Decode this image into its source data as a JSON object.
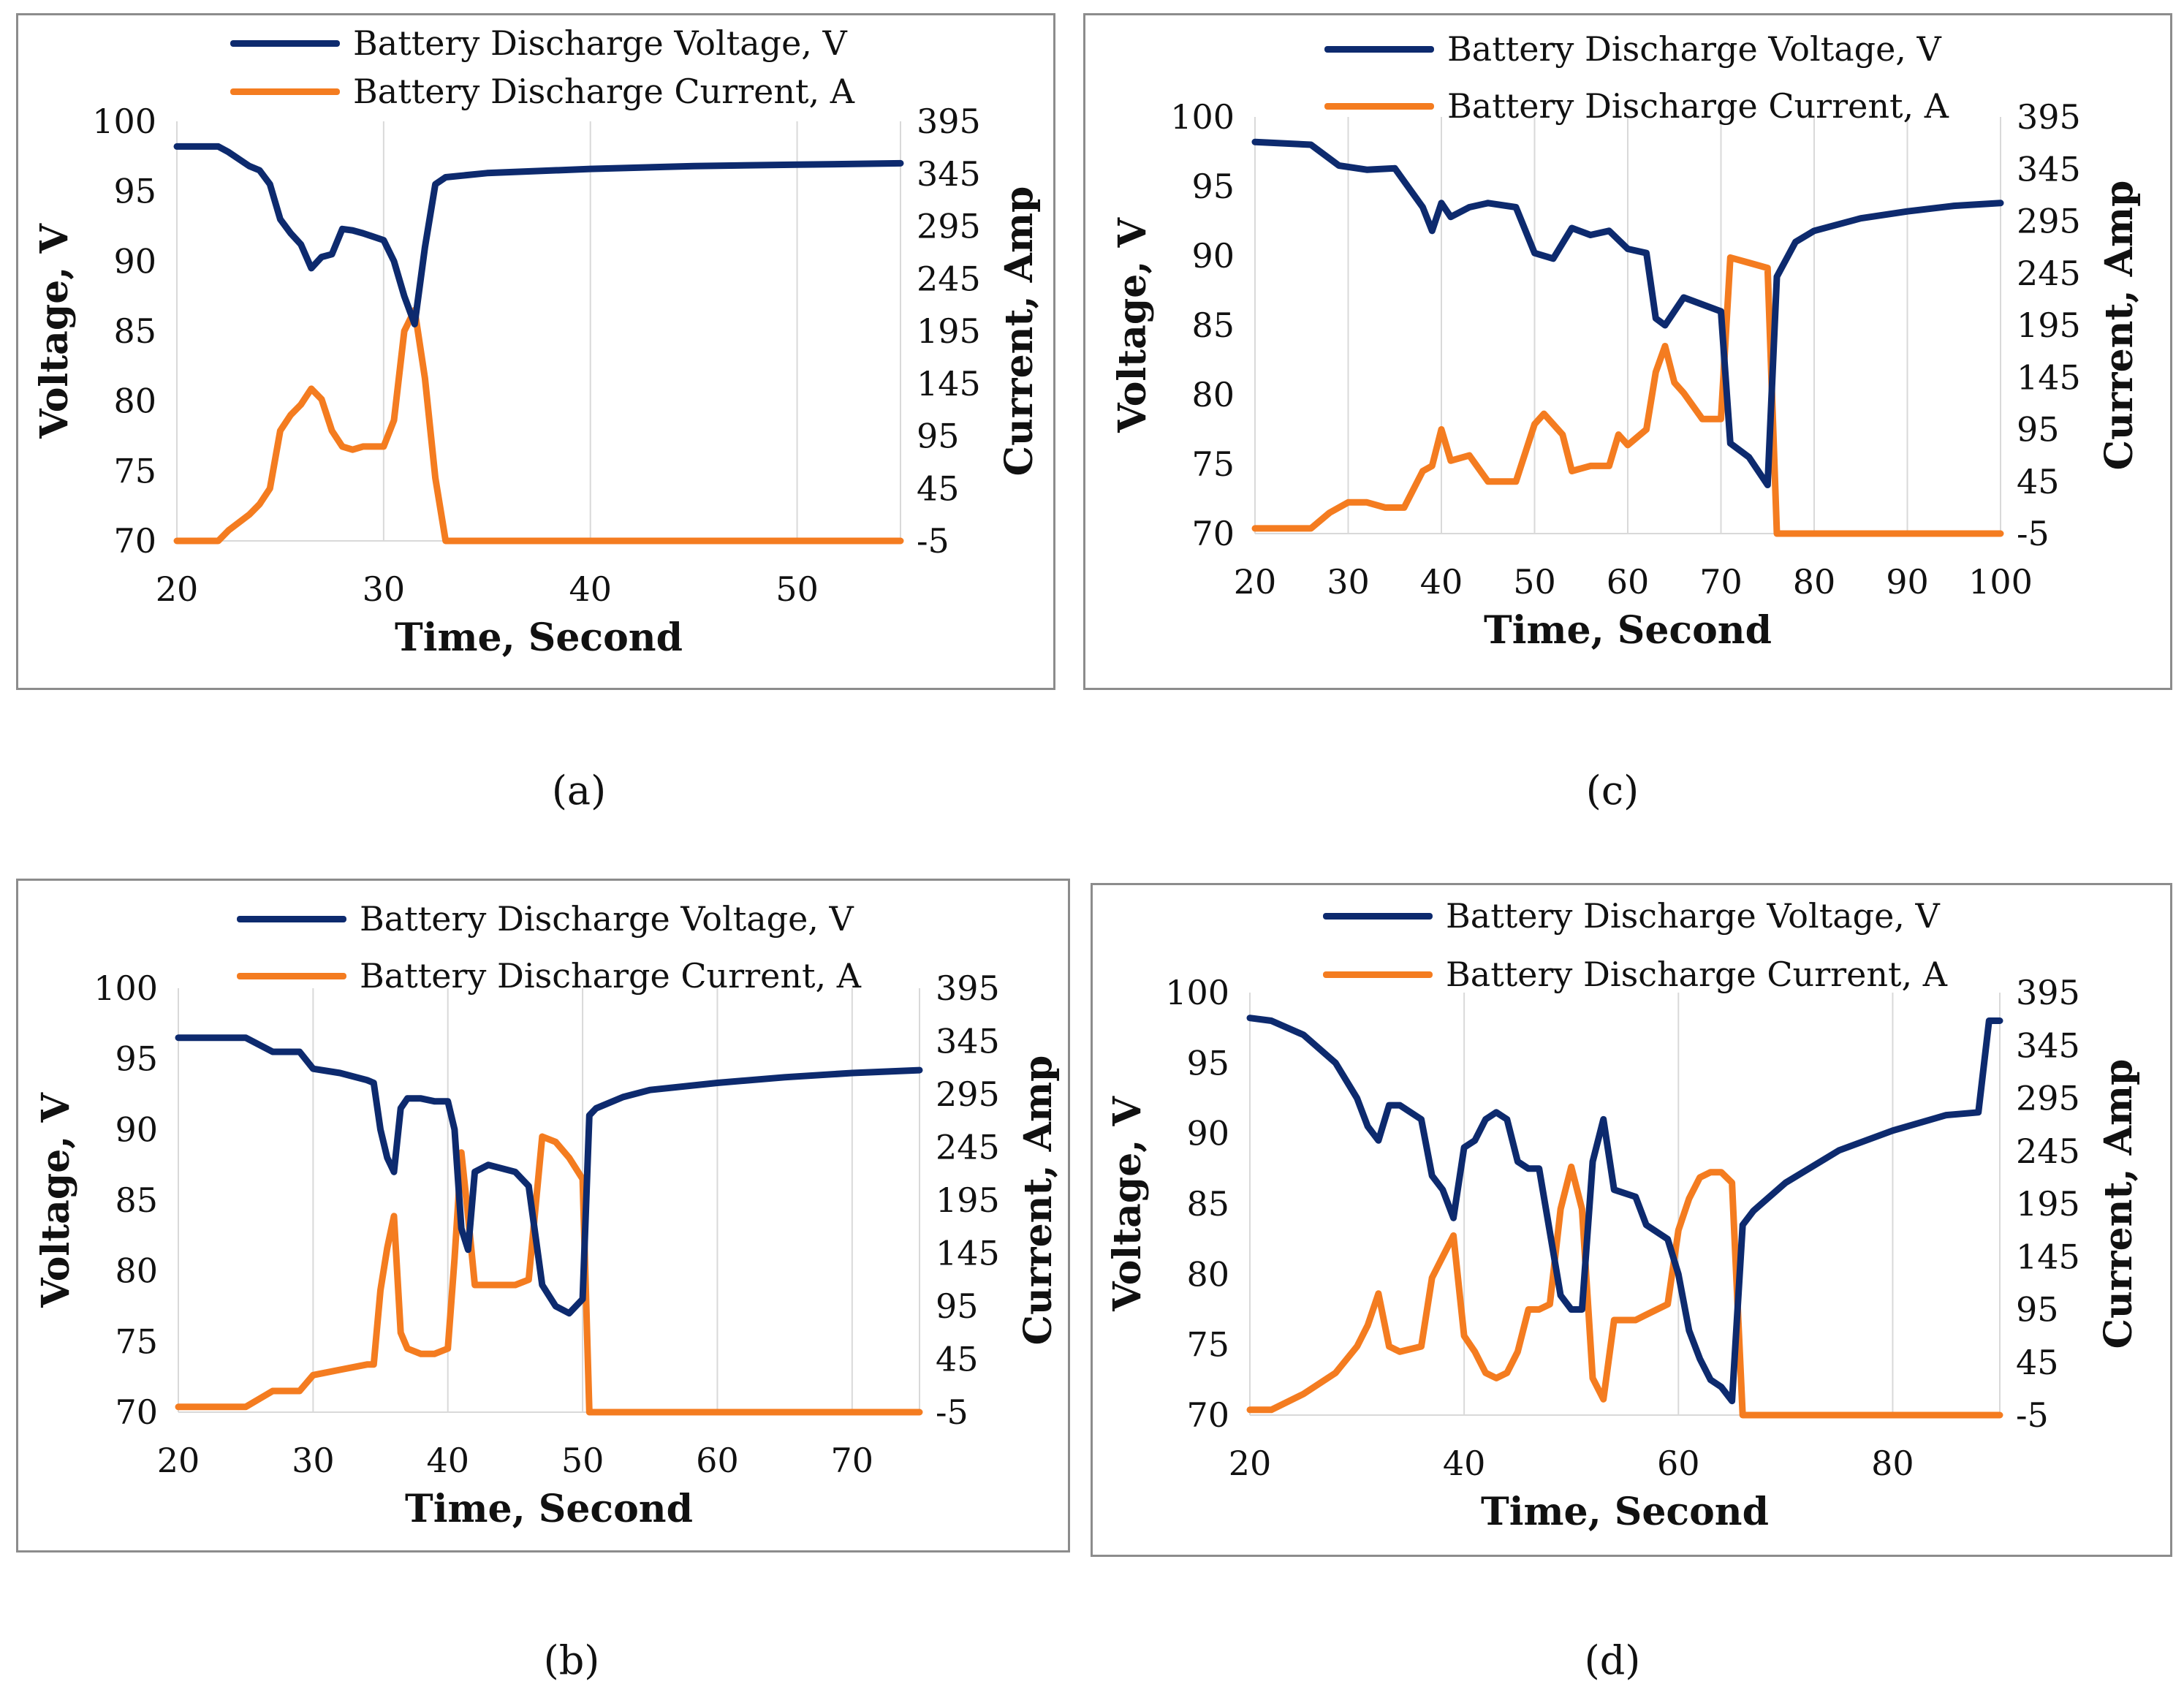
{
  "colors": {
    "voltage": "#0d2a6e",
    "current": "#f47c20",
    "grid": "#d9d9d9",
    "frame": "#8c8c8c"
  },
  "panels": [
    {
      "id": "a",
      "caption": "(a)",
      "chart_data": {
        "type": "line",
        "title": "",
        "xlabel": "Time, Second",
        "ylabel_left": "Voltage, V",
        "ylabel_right": "Current, Amp",
        "xlim": [
          20,
          55
        ],
        "x_ticks": [
          "20",
          "30",
          "40",
          "50"
        ],
        "ylim_left": [
          70,
          100
        ],
        "y_left_ticks": [
          "70",
          "75",
          "80",
          "85",
          "90",
          "95",
          "100"
        ],
        "ylim_right": [
          -5,
          395
        ],
        "y_right_ticks": [
          "-5",
          "45",
          "95",
          "145",
          "195",
          "245",
          "295",
          "345",
          "395"
        ],
        "grid": "vertical",
        "legend": "top-center",
        "series": [
          {
            "name": "Battery Discharge Voltage, V",
            "axis": "left",
            "x": [
              20,
              22,
              22.5,
              23.5,
              24,
              24.5,
              25,
              25.5,
              26,
              26.5,
              27,
              27.5,
              28,
              28.5,
              29,
              30,
              30.5,
              31,
              31.5,
              32,
              32.5,
              33,
              35,
              40,
              45,
              50,
              55
            ],
            "y": [
              98.2,
              98.2,
              97.8,
              96.8,
              96.5,
              95.5,
              93,
              92,
              91.2,
              89.5,
              90.3,
              90.5,
              92.3,
              92.2,
              92,
              91.5,
              90,
              87.5,
              85.5,
              91,
              95.5,
              96,
              96.3,
              96.6,
              96.8,
              96.9,
              97
            ]
          },
          {
            "name": "Battery Discharge Current, A",
            "axis": "right",
            "x": [
              20,
              22,
              22.5,
              23.5,
              24,
              24.5,
              25,
              25.5,
              26,
              26.5,
              27,
              27.5,
              28,
              28.5,
              29,
              30,
              30.5,
              31,
              31.5,
              32,
              32.5,
              33,
              35,
              40,
              45,
              50,
              55
            ],
            "y": [
              -5,
              -5,
              5,
              20,
              30,
              45,
              100,
              115,
              125,
              140,
              130,
              100,
              85,
              82,
              85,
              85,
              110,
              195,
              215,
              150,
              55,
              -5,
              -5,
              -5,
              -5,
              -5,
              -5
            ]
          }
        ]
      }
    },
    {
      "id": "c",
      "caption": "(c)",
      "chart_data": {
        "type": "line",
        "title": "",
        "xlabel": "Time, Second",
        "ylabel_left": "Voltage, V",
        "ylabel_right": "Current, Amp",
        "xlim": [
          20,
          100
        ],
        "x_ticks": [
          "20",
          "30",
          "40",
          "50",
          "60",
          "70",
          "80",
          "90",
          "100"
        ],
        "ylim_left": [
          70,
          100
        ],
        "y_left_ticks": [
          "70",
          "75",
          "80",
          "85",
          "90",
          "95",
          "100"
        ],
        "ylim_right": [
          -5,
          395
        ],
        "y_right_ticks": [
          "-5",
          "45",
          "95",
          "145",
          "195",
          "245",
          "295",
          "345",
          "395"
        ],
        "grid": "vertical",
        "legend": "top-center",
        "series": [
          {
            "name": "Battery Discharge Voltage, V",
            "axis": "left",
            "x": [
              20,
              26,
              29,
              32,
              35,
              38,
              39,
              40,
              41,
              43,
              45,
              48,
              50,
              52,
              54,
              56,
              58,
              60,
              62,
              63,
              64,
              66,
              68,
              70,
              71,
              73,
              75,
              76,
              78,
              80,
              85,
              90,
              95,
              100
            ],
            "y": [
              98.2,
              98,
              96.5,
              96.2,
              96.3,
              93.5,
              91.8,
              93.8,
              92.8,
              93.5,
              93.8,
              93.5,
              90.2,
              89.8,
              92,
              91.5,
              91.8,
              90.5,
              90.2,
              85.5,
              85,
              87,
              86.5,
              86,
              76.5,
              75.5,
              73.5,
              88.5,
              91,
              91.8,
              92.7,
              93.2,
              93.6,
              93.8
            ]
          },
          {
            "name": "Battery Discharge Current, A",
            "axis": "right",
            "x": [
              20,
              26,
              28,
              30,
              32,
              34,
              36,
              38,
              39,
              40,
              41,
              43,
              45,
              48,
              50,
              51,
              53,
              54,
              56,
              58,
              59,
              60,
              62,
              63,
              64,
              65,
              66,
              68,
              70,
              71,
              73,
              75,
              76,
              78,
              80,
              85,
              90,
              95,
              100
            ],
            "y": [
              0,
              0,
              15,
              25,
              25,
              20,
              20,
              55,
              60,
              95,
              65,
              70,
              45,
              45,
              100,
              110,
              90,
              55,
              60,
              60,
              90,
              80,
              95,
              150,
              175,
              140,
              130,
              105,
              105,
              260,
              255,
              250,
              -5,
              -5,
              -5,
              -5,
              -5,
              -5,
              -5
            ]
          }
        ]
      }
    },
    {
      "id": "b",
      "caption": "(b)",
      "chart_data": {
        "type": "line",
        "title": "",
        "xlabel": "Time, Second",
        "ylabel_left": "Voltage, V",
        "ylabel_right": "Current, Amp",
        "xlim": [
          20,
          75
        ],
        "x_ticks": [
          "20",
          "30",
          "40",
          "50",
          "60",
          "70"
        ],
        "ylim_left": [
          70,
          100
        ],
        "y_left_ticks": [
          "70",
          "75",
          "80",
          "85",
          "90",
          "95",
          "100"
        ],
        "ylim_right": [
          -5,
          395
        ],
        "y_right_ticks": [
          "-5",
          "45",
          "95",
          "145",
          "195",
          "245",
          "295",
          "345",
          "395"
        ],
        "grid": "vertical",
        "legend": "top-center",
        "series": [
          {
            "name": "Battery Discharge Voltage, V",
            "axis": "left",
            "x": [
              20,
              25,
              27,
              29,
              30,
              32,
              34,
              34.5,
              35,
              35.5,
              36,
              36.5,
              37,
              38,
              39,
              40,
              40.5,
              41,
              41.5,
              42,
              43,
              45,
              46,
              47,
              48,
              49,
              50,
              50.5,
              51,
              53,
              55,
              60,
              65,
              70,
              75
            ],
            "y": [
              96.5,
              96.5,
              95.5,
              95.5,
              94.3,
              94,
              93.5,
              93.3,
              90,
              88,
              87,
              91.5,
              92.2,
              92.2,
              92,
              92,
              90,
              83,
              81.5,
              87,
              87.5,
              87,
              86,
              79,
              77.5,
              77,
              78,
              91,
              91.5,
              92.3,
              92.8,
              93.3,
              93.7,
              94,
              94.2
            ]
          },
          {
            "name": "Battery Discharge Current, A",
            "axis": "right",
            "x": [
              20,
              25,
              27,
              29,
              30,
              32,
              34,
              34.5,
              35,
              35.5,
              36,
              36.5,
              37,
              38,
              39,
              40,
              40.5,
              41,
              41.5,
              42,
              43,
              45,
              46,
              47,
              48,
              49,
              50,
              50.5,
              51,
              53,
              55,
              60,
              65,
              70,
              75
            ],
            "y": [
              0,
              0,
              15,
              15,
              30,
              35,
              40,
              40,
              110,
              150,
              180,
              70,
              55,
              50,
              50,
              55,
              140,
              240,
              180,
              115,
              115,
              115,
              120,
              255,
              250,
              235,
              215,
              -5,
              -5,
              -5,
              -5,
              -5,
              -5,
              -5,
              -5
            ]
          }
        ]
      }
    },
    {
      "id": "d",
      "caption": "(d)",
      "chart_data": {
        "type": "line",
        "title": "",
        "xlabel": "Time, Second",
        "ylabel_left": "Voltage, V",
        "ylabel_right": "Current, Amp",
        "xlim": [
          20,
          90
        ],
        "x_ticks": [
          "20",
          "40",
          "60",
          "80"
        ],
        "ylim_left": [
          70,
          100
        ],
        "y_left_ticks": [
          "70",
          "75",
          "80",
          "85",
          "90",
          "95",
          "100"
        ],
        "ylim_right": [
          -5,
          395
        ],
        "y_right_ticks": [
          "-5",
          "45",
          "95",
          "145",
          "195",
          "245",
          "295",
          "345",
          "395"
        ],
        "grid": "vertical",
        "legend": "top-center",
        "series": [
          {
            "name": "Battery Discharge Voltage, V",
            "axis": "left",
            "x": [
              20,
              22,
              25,
              28,
              30,
              31,
              32,
              33,
              34,
              36,
              37,
              38,
              39,
              40,
              41,
              42,
              43,
              44,
              45,
              46,
              47,
              48,
              49,
              50,
              51,
              52,
              53,
              54,
              56,
              57,
              59,
              60,
              61,
              62,
              63,
              64,
              65,
              66,
              67,
              70,
              75,
              80,
              85,
              88,
              89,
              90
            ],
            "y": [
              98.2,
              98,
              97,
              95,
              92.5,
              90.5,
              89.5,
              92,
              92,
              91,
              87,
              86,
              84,
              89,
              89.5,
              91,
              91.5,
              91,
              88,
              87.5,
              87.5,
              83,
              78.5,
              77.5,
              77.5,
              88,
              91,
              86,
              85.5,
              83.5,
              82.5,
              80,
              76,
              74,
              72.5,
              72,
              71,
              83.5,
              84.5,
              86.5,
              88.8,
              90.2,
              91.3,
              91.5,
              98,
              98
            ]
          },
          {
            "name": "Battery Discharge Current, A",
            "axis": "right",
            "x": [
              20,
              22,
              25,
              28,
              30,
              31,
              32,
              33,
              34,
              36,
              37,
              38,
              39,
              40,
              41,
              42,
              43,
              44,
              45,
              46,
              47,
              48,
              49,
              50,
              51,
              52,
              53,
              54,
              56,
              57,
              59,
              60,
              61,
              62,
              63,
              64,
              65,
              66,
              67,
              70,
              75,
              80,
              85,
              88,
              89,
              90
            ],
            "y": [
              0,
              0,
              15,
              35,
              60,
              80,
              110,
              60,
              55,
              60,
              125,
              145,
              165,
              70,
              55,
              35,
              30,
              35,
              55,
              95,
              95,
              100,
              190,
              230,
              190,
              30,
              10,
              85,
              85,
              90,
              100,
              170,
              200,
              220,
              225,
              225,
              215,
              -5,
              -5,
              -5,
              -5,
              -5,
              -5,
              -5,
              -5,
              -5
            ]
          }
        ]
      }
    }
  ]
}
